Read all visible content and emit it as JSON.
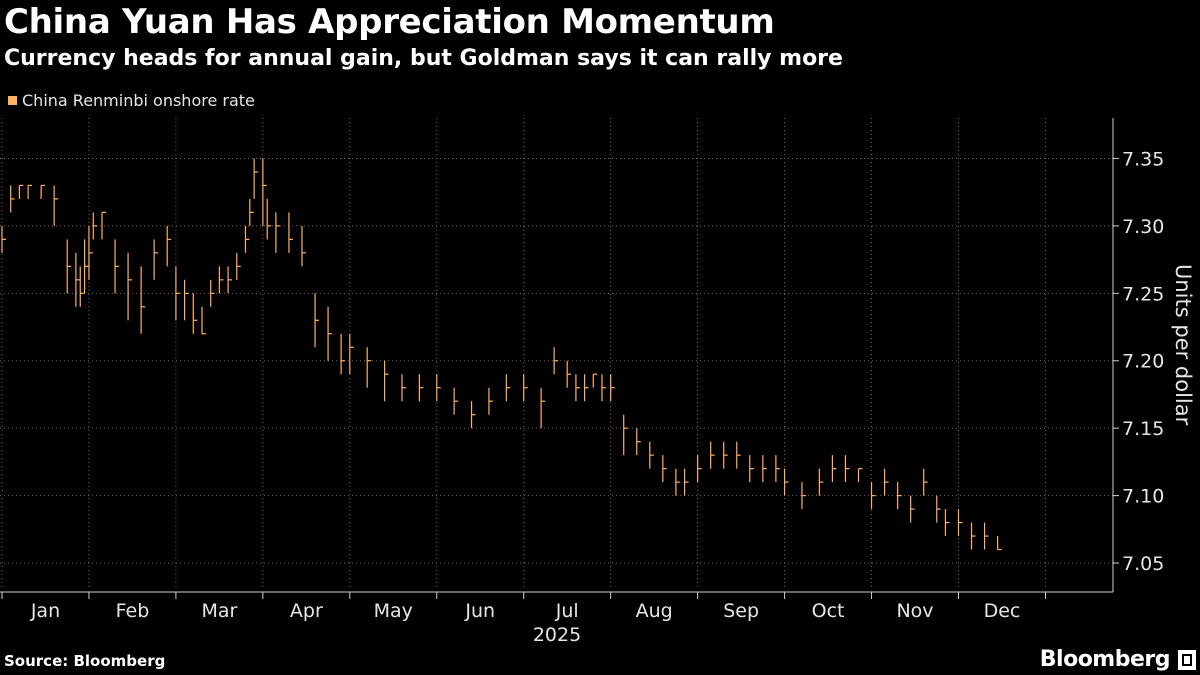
{
  "header": {
    "title": "China Yuan Has Appreciation Momentum",
    "subtitle": "Currency heads for annual gain, but Goldman says it can rally more"
  },
  "footer": {
    "source": "Source: Bloomberg",
    "brand": "Bloomberg"
  },
  "colors": {
    "series": "#ffb060",
    "grid": "#6a6a6a",
    "background": "#000000",
    "text": "#e6e6e6"
  },
  "chart_data": {
    "type": "ohlc",
    "title": "China Yuan Has Appreciation Momentum",
    "subtitle": "Currency heads for annual gain, but Goldman says it can rally more",
    "legend": [
      "China Renminbi onshore rate"
    ],
    "legend_position": "top-left",
    "ylabel": "Units per dollar",
    "y_axis_side": "right",
    "xlabel": "2025",
    "ylim": [
      7.03,
      7.38
    ],
    "yticks": [
      7.05,
      7.1,
      7.15,
      7.2,
      7.25,
      7.3,
      7.35
    ],
    "ytick_labels": [
      "7.05",
      "7.10",
      "7.15",
      "7.20",
      "7.25",
      "7.30",
      "7.35"
    ],
    "x_tick_labels": [
      "Jan",
      "Feb",
      "Mar",
      "Apr",
      "May",
      "Jun",
      "Jul",
      "Aug",
      "Sep",
      "Oct",
      "Nov",
      "Dec"
    ],
    "grid": true,
    "series": [
      {
        "name": "China Renminbi onshore rate",
        "x_months": [
          0.0,
          0.1,
          0.2,
          0.3,
          0.45,
          0.6,
          0.75,
          0.85,
          0.9,
          0.95,
          1.0,
          1.05,
          1.15,
          1.3,
          1.45,
          1.6,
          1.75,
          1.9,
          2.0,
          2.1,
          2.2,
          2.3,
          2.4,
          2.5,
          2.6,
          2.7,
          2.8,
          2.85,
          2.9,
          3.0,
          3.05,
          3.15,
          3.3,
          3.45,
          3.6,
          3.75,
          3.9,
          4.0,
          4.2,
          4.4,
          4.6,
          4.8,
          5.0,
          5.2,
          5.4,
          5.6,
          5.8,
          6.0,
          6.2,
          6.35,
          6.5,
          6.6,
          6.7,
          6.8,
          6.9,
          7.0,
          7.15,
          7.3,
          7.45,
          7.6,
          7.75,
          7.85,
          8.0,
          8.15,
          8.3,
          8.45,
          8.6,
          8.75,
          8.9,
          9.0,
          9.2,
          9.4,
          9.55,
          9.7,
          9.85,
          10.0,
          10.15,
          10.3,
          10.45,
          10.6,
          10.75,
          10.85,
          11.0,
          11.15,
          11.3,
          11.45
        ],
        "close": [
          7.29,
          7.32,
          7.33,
          7.33,
          7.33,
          7.32,
          7.27,
          7.26,
          7.25,
          7.27,
          7.28,
          7.3,
          7.31,
          7.27,
          7.26,
          7.24,
          7.28,
          7.29,
          7.25,
          7.25,
          7.23,
          7.22,
          7.25,
          7.26,
          7.26,
          7.27,
          7.29,
          7.31,
          7.34,
          7.33,
          7.3,
          7.3,
          7.29,
          7.28,
          7.23,
          7.22,
          7.2,
          7.21,
          7.2,
          7.19,
          7.18,
          7.18,
          7.18,
          7.17,
          7.16,
          7.17,
          7.18,
          7.18,
          7.17,
          7.2,
          7.19,
          7.18,
          7.18,
          7.19,
          7.18,
          7.18,
          7.15,
          7.14,
          7.13,
          7.12,
          7.11,
          7.11,
          7.12,
          7.13,
          7.13,
          7.13,
          7.12,
          7.12,
          7.12,
          7.11,
          7.1,
          7.11,
          7.12,
          7.12,
          7.12,
          7.1,
          7.11,
          7.1,
          7.09,
          7.11,
          7.09,
          7.08,
          7.08,
          7.07,
          7.07,
          7.06
        ],
        "high": [
          7.3,
          7.33,
          7.33,
          7.33,
          7.33,
          7.33,
          7.29,
          7.28,
          7.27,
          7.29,
          7.3,
          7.31,
          7.31,
          7.29,
          7.28,
          7.27,
          7.29,
          7.3,
          7.27,
          7.26,
          7.25,
          7.24,
          7.26,
          7.27,
          7.27,
          7.28,
          7.3,
          7.32,
          7.35,
          7.35,
          7.32,
          7.31,
          7.31,
          7.3,
          7.25,
          7.24,
          7.22,
          7.22,
          7.21,
          7.2,
          7.19,
          7.19,
          7.19,
          7.18,
          7.17,
          7.18,
          7.19,
          7.19,
          7.18,
          7.21,
          7.2,
          7.19,
          7.19,
          7.19,
          7.19,
          7.19,
          7.16,
          7.15,
          7.14,
          7.13,
          7.12,
          7.12,
          7.13,
          7.14,
          7.14,
          7.14,
          7.13,
          7.13,
          7.13,
          7.12,
          7.11,
          7.12,
          7.13,
          7.13,
          7.12,
          7.11,
          7.12,
          7.11,
          7.1,
          7.12,
          7.1,
          7.09,
          7.09,
          7.08,
          7.08,
          7.07
        ],
        "low": [
          7.28,
          7.31,
          7.32,
          7.32,
          7.32,
          7.3,
          7.25,
          7.24,
          7.24,
          7.25,
          7.26,
          7.29,
          7.29,
          7.25,
          7.23,
          7.22,
          7.26,
          7.27,
          7.23,
          7.23,
          7.22,
          7.22,
          7.24,
          7.25,
          7.25,
          7.26,
          7.28,
          7.3,
          7.32,
          7.3,
          7.29,
          7.28,
          7.28,
          7.27,
          7.21,
          7.2,
          7.19,
          7.19,
          7.18,
          7.17,
          7.17,
          7.17,
          7.17,
          7.16,
          7.15,
          7.16,
          7.17,
          7.17,
          7.15,
          7.19,
          7.18,
          7.17,
          7.17,
          7.18,
          7.17,
          7.17,
          7.13,
          7.13,
          7.12,
          7.11,
          7.1,
          7.1,
          7.11,
          7.12,
          7.12,
          7.12,
          7.11,
          7.11,
          7.11,
          7.1,
          7.09,
          7.1,
          7.11,
          7.11,
          7.11,
          7.09,
          7.1,
          7.09,
          7.08,
          7.1,
          7.08,
          7.07,
          7.07,
          7.06,
          7.06,
          7.06
        ]
      }
    ]
  }
}
